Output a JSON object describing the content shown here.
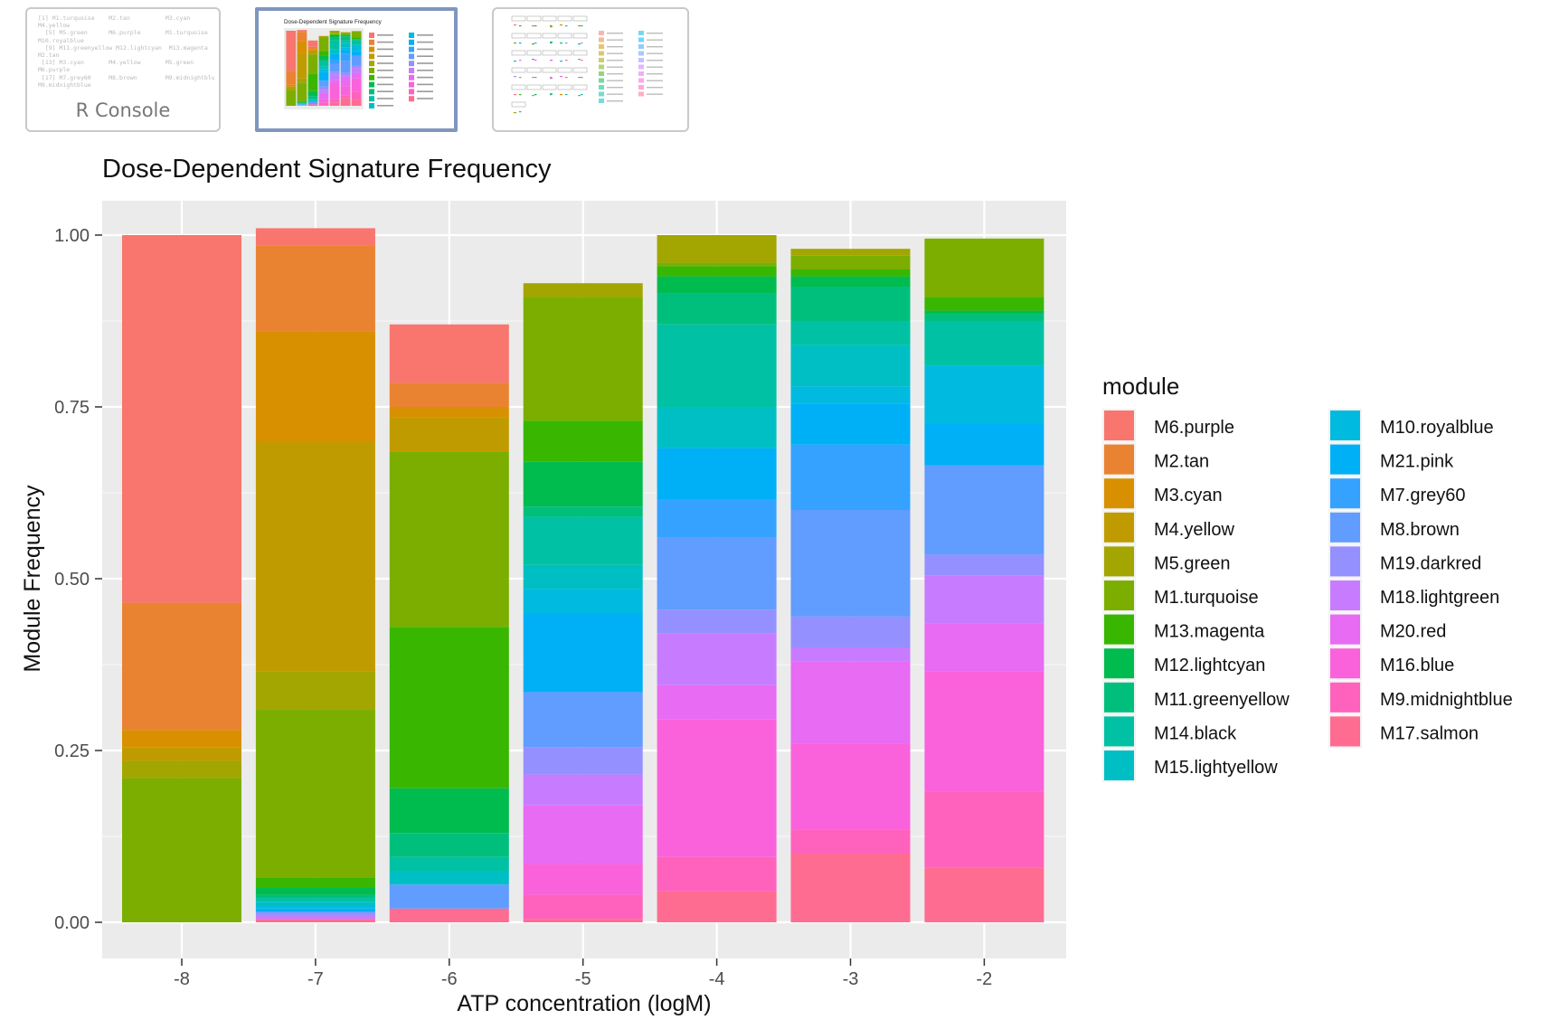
{
  "thumbnails": {
    "console": {
      "label": "R Console",
      "lines": [
        "[1] M1.turquoise    M2.tan          M3.cyan",
        "M4.yellow",
        "  [5] M5.green      M6.purple       M1.turquoise",
        "M10.royalblue",
        "  [9] M11.greenyellow M12.lightcyan  M13.magenta",
        "M2.tan",
        " [13] M3.cyan       M4.yellow       M5.green",
        "M6.purple",
        " [17] M7.grey60     M8.brown        M9.midnightblue",
        "M9.midnightblue"
      ]
    },
    "chart": {
      "title": "Dose-Dependent Signature Frequency",
      "selected": true
    },
    "facet": {
      "selected": false
    }
  },
  "chart_data": {
    "type": "bar",
    "stacked": true,
    "title": "Dose-Dependent Signature Frequency",
    "xlabel": "ATP concentration (logM)",
    "ylabel": "Module Frequency",
    "ylim": [
      0,
      1
    ],
    "yticks": [
      "0.00",
      "0.25",
      "0.50",
      "0.75",
      "1.00"
    ],
    "categories": [
      "-8",
      "-7",
      "-6",
      "-5",
      "-4",
      "-3",
      "-2"
    ],
    "legend_title": "module",
    "legend_position": "right",
    "grid": true,
    "series": [
      {
        "name": "M6.purple",
        "color": "#F8766D",
        "values": [
          0.535,
          0.025,
          0.085,
          0,
          0,
          0,
          0
        ]
      },
      {
        "name": "M2.tan",
        "color": "#EA8331",
        "values": [
          0.185,
          0.125,
          0.035,
          0,
          0,
          0,
          0
        ]
      },
      {
        "name": "M3.cyan",
        "color": "#D89000",
        "values": [
          0.025,
          0.16,
          0.015,
          0,
          0,
          0,
          0
        ]
      },
      {
        "name": "M4.yellow",
        "color": "#C09B00",
        "values": [
          0.02,
          0.335,
          0.05,
          0,
          0,
          0,
          0
        ]
      },
      {
        "name": "M5.green",
        "color": "#A3A500",
        "values": [
          0.025,
          0.055,
          0.0,
          0.02,
          0.04,
          0.01,
          0
        ]
      },
      {
        "name": "M1.turquoise",
        "color": "#7CAE00",
        "values": [
          0.21,
          0.245,
          0.255,
          0.18,
          0.005,
          0.02,
          0.085
        ]
      },
      {
        "name": "M13.magenta",
        "color": "#39B600",
        "values": [
          0,
          0.015,
          0.235,
          0.06,
          0.015,
          0.01,
          0.02
        ]
      },
      {
        "name": "M12.lightcyan",
        "color": "#00BB4E",
        "values": [
          0,
          0.01,
          0.065,
          0.065,
          0.025,
          0.015,
          0.005
        ]
      },
      {
        "name": "M11.greenyellow",
        "color": "#00BF7D",
        "values": [
          0,
          0.005,
          0.035,
          0.015,
          0.045,
          0.05,
          0.01
        ]
      },
      {
        "name": "M14.black",
        "color": "#00C1A3",
        "values": [
          0,
          0.005,
          0.02,
          0.07,
          0.12,
          0.035,
          0.065
        ]
      },
      {
        "name": "M15.lightyellow",
        "color": "#00BFC4",
        "values": [
          0,
          0.005,
          0.02,
          0.035,
          0.06,
          0.06,
          0.0
        ]
      },
      {
        "name": "M10.royalblue",
        "color": "#00BAE0",
        "values": [
          0,
          0.005,
          0.0,
          0.035,
          0.0,
          0.025,
          0.085
        ]
      },
      {
        "name": "M21.pink",
        "color": "#00B0F6",
        "values": [
          0,
          0.005,
          0.0,
          0.115,
          0.075,
          0.06,
          0.06
        ]
      },
      {
        "name": "M7.grey60",
        "color": "#35A2FF",
        "values": [
          0,
          0.0,
          0.0,
          0.0,
          0.055,
          0.095,
          0.0
        ]
      },
      {
        "name": "M8.brown",
        "color": "#619CFF",
        "values": [
          0,
          0.0,
          0.035,
          0.08,
          0.105,
          0.155,
          0.13
        ]
      },
      {
        "name": "M19.darkred",
        "color": "#9590FF",
        "values": [
          0,
          0.005,
          0.0,
          0.04,
          0.035,
          0.045,
          0.03
        ]
      },
      {
        "name": "M18.lightgreen",
        "color": "#C77CFF",
        "values": [
          0,
          0.005,
          0.0,
          0.045,
          0.075,
          0.02,
          0.07
        ]
      },
      {
        "name": "M20.red",
        "color": "#E76BF3",
        "values": [
          0,
          0.0,
          0.0,
          0.085,
          0.05,
          0.12,
          0.07
        ]
      },
      {
        "name": "M16.blue",
        "color": "#FA62DB",
        "values": [
          0,
          0.0,
          0.0,
          0.045,
          0.2,
          0.125,
          0.175
        ]
      },
      {
        "name": "M9.midnightblue",
        "color": "#FF62BC",
        "values": [
          0,
          0.0,
          0.0,
          0.035,
          0.05,
          0.035,
          0.11
        ]
      },
      {
        "name": "M17.salmon",
        "color": "#FF6C91",
        "values": [
          0,
          0.005,
          0.02,
          0.005,
          0.045,
          0.1,
          0.08
        ]
      }
    ]
  }
}
